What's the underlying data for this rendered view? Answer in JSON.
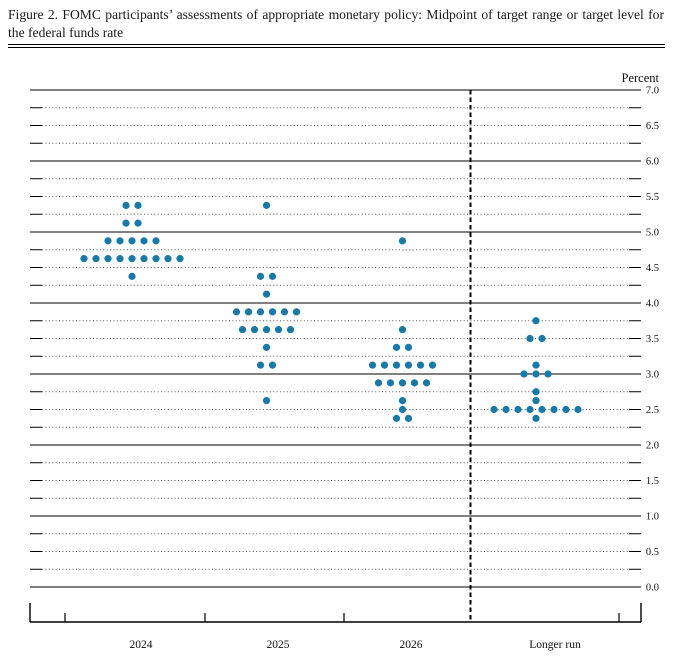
{
  "figure": {
    "title": "Figure 2.  FOMC participants’ assessments of appropriate monetary policy:  Midpoint of target range or target level for the federal funds rate"
  },
  "chart_data": {
    "type": "scatter",
    "title": "FOMC participants’ assessments of appropriate monetary policy: Midpoint of target range or target level for the federal funds rate",
    "ylabel": "Percent",
    "xlabel": "",
    "ylim": [
      0.0,
      7.0
    ],
    "y_label_step": 0.5,
    "y_grid_step": 0.25,
    "grid": "solid horizontal lines at integer percents, dotted lines at quarter percents",
    "legend": "none",
    "y_tick_labels": [
      "7.0",
      "6.5",
      "6.0",
      "5.5",
      "5.0",
      "4.5",
      "4.0",
      "3.5",
      "3.0",
      "2.5",
      "2.0",
      "1.5",
      "1.0",
      "0.5",
      "0.0"
    ],
    "categories": [
      "2024",
      "2025",
      "2026",
      "Longer run"
    ],
    "separator_note": "dashed vertical line separates projection years from Longer run",
    "dot_color": "#1878a8",
    "series": [
      {
        "category": "2024",
        "dots": [
          {
            "rate": 5.375,
            "count": 2
          },
          {
            "rate": 5.125,
            "count": 2
          },
          {
            "rate": 4.875,
            "count": 5
          },
          {
            "rate": 4.625,
            "count": 9
          },
          {
            "rate": 4.375,
            "count": 1
          }
        ]
      },
      {
        "category": "2025",
        "dots": [
          {
            "rate": 5.375,
            "count": 1
          },
          {
            "rate": 4.375,
            "count": 2
          },
          {
            "rate": 4.125,
            "count": 1
          },
          {
            "rate": 3.875,
            "count": 6
          },
          {
            "rate": 3.625,
            "count": 5
          },
          {
            "rate": 3.375,
            "count": 1
          },
          {
            "rate": 3.125,
            "count": 2
          },
          {
            "rate": 2.625,
            "count": 1
          }
        ]
      },
      {
        "category": "2026",
        "dots": [
          {
            "rate": 4.875,
            "count": 1
          },
          {
            "rate": 3.625,
            "count": 1
          },
          {
            "rate": 3.375,
            "count": 2
          },
          {
            "rate": 3.125,
            "count": 6
          },
          {
            "rate": 2.875,
            "count": 5
          },
          {
            "rate": 2.625,
            "count": 1
          },
          {
            "rate": 2.5,
            "count": 1
          },
          {
            "rate": 2.375,
            "count": 2
          }
        ]
      },
      {
        "category": "Longer run",
        "dots": [
          {
            "rate": 3.75,
            "count": 1
          },
          {
            "rate": 3.5,
            "count": 2
          },
          {
            "rate": 3.125,
            "count": 1
          },
          {
            "rate": 3.0,
            "count": 3
          },
          {
            "rate": 2.75,
            "count": 1
          },
          {
            "rate": 2.625,
            "count": 1
          },
          {
            "rate": 2.5,
            "count": 8
          },
          {
            "rate": 2.375,
            "count": 1
          }
        ]
      }
    ]
  }
}
